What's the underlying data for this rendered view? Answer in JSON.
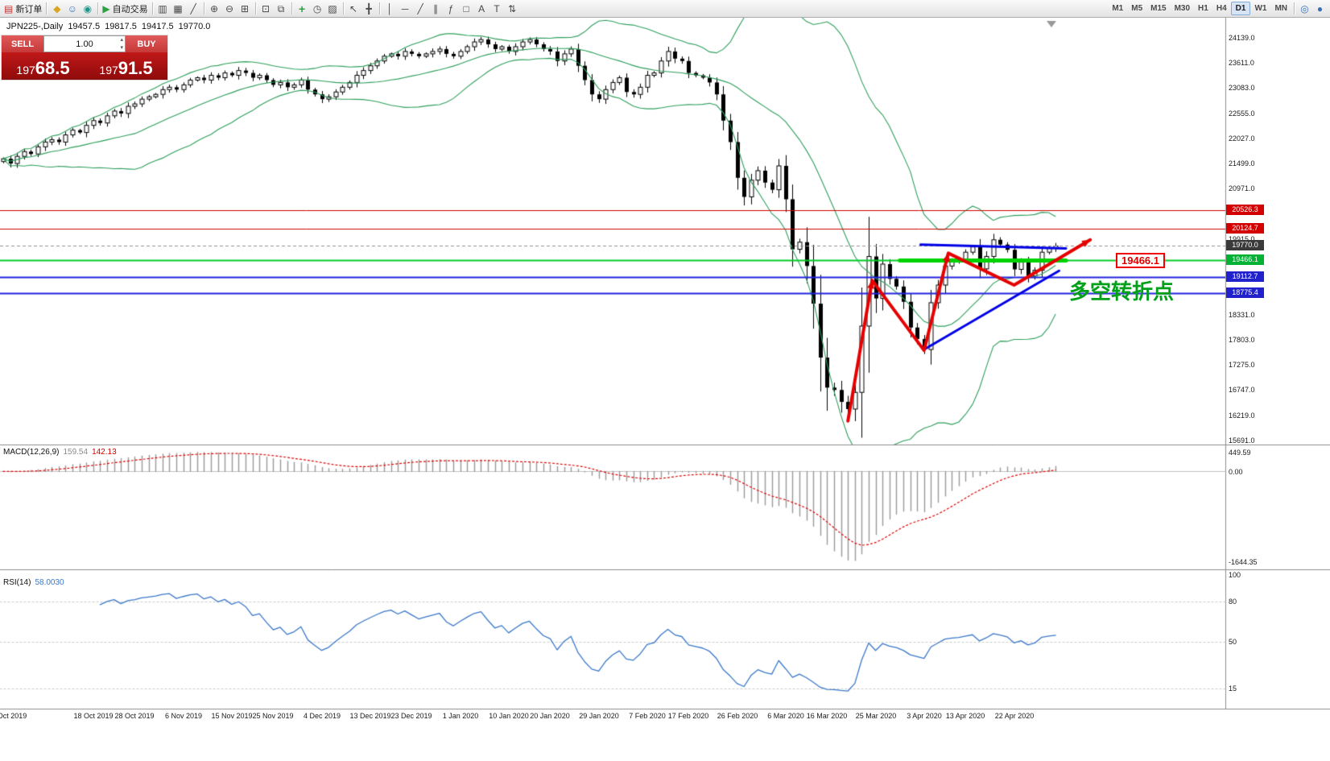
{
  "toolbar": {
    "groups": [
      {
        "name": "order",
        "items": [
          {
            "icon": "new-order-icon",
            "label": "新订单"
          }
        ]
      },
      {
        "name": "accounts",
        "items": [
          {
            "icon": "mql5-icon"
          },
          {
            "icon": "profile-icon"
          },
          {
            "icon": "community-icon"
          }
        ]
      },
      {
        "name": "autotrade",
        "items": [
          {
            "icon": "autotrade-icon",
            "label": "自动交易"
          }
        ]
      },
      {
        "name": "chart-types",
        "items": [
          {
            "icon": "bar-chart-icon"
          },
          {
            "icon": "candlestick-chart-icon"
          },
          {
            "icon": "line-chart-icon"
          }
        ]
      },
      {
        "name": "zoom",
        "items": [
          {
            "icon": "zoom-in-icon"
          },
          {
            "icon": "zoom-out-icon"
          },
          {
            "icon": "grid-icon"
          }
        ]
      },
      {
        "name": "windows",
        "items": [
          {
            "icon": "new-chart-icon"
          },
          {
            "icon": "tile-windows-icon"
          }
        ]
      },
      {
        "name": "tools",
        "items": [
          {
            "icon": "indicators-icon"
          },
          {
            "icon": "periods-icon"
          },
          {
            "icon": "templates-icon"
          }
        ]
      },
      {
        "name": "cursor",
        "items": [
          {
            "icon": "cursor-icon"
          },
          {
            "icon": "crosshair-icon"
          }
        ]
      },
      {
        "name": "draw",
        "items": [
          {
            "icon": "vertical-line-icon"
          },
          {
            "icon": "horizontal-line-icon"
          },
          {
            "icon": "trendline-icon"
          },
          {
            "icon": "channel-icon"
          },
          {
            "icon": "fibonacci-icon"
          },
          {
            "icon": "shapes-icon"
          },
          {
            "icon": "text-icon"
          },
          {
            "icon": "label-icon"
          },
          {
            "icon": "arrows-icon"
          }
        ]
      }
    ],
    "timeframes": [
      "M1",
      "M5",
      "M15",
      "M30",
      "H1",
      "H4",
      "D1",
      "W1",
      "MN"
    ],
    "active_timeframe": "D1",
    "right_items": [
      {
        "icon": "search-icon"
      },
      {
        "icon": "chat-icon"
      }
    ]
  },
  "symbol_header": {
    "title": "JPN225-,Daily",
    "open": "19457.5",
    "high": "19817.5",
    "low": "19417.5",
    "close": "19770.0"
  },
  "trading_panel": {
    "sell_label": "SELL",
    "buy_label": "BUY",
    "volume": "1.00",
    "sell_price": "19768.5",
    "buy_price": "19791.5"
  },
  "chart_data": {
    "type": "candlestick",
    "symbol": "JPN225-",
    "timeframe": "Daily",
    "price_axis_ticks": [
      "24139.0",
      "23611.0",
      "23083.0",
      "22555.0",
      "22027.0",
      "21499.0",
      "20971.0",
      "19915.0",
      "18331.0",
      "17803.0",
      "17275.0",
      "16747.0",
      "16219.0",
      "15691.0"
    ],
    "closes": [
      21600,
      21500,
      21650,
      21750,
      21700,
      21850,
      21950,
      22000,
      21950,
      22100,
      22200,
      22150,
      22300,
      22400,
      22350,
      22500,
      22600,
      22550,
      22700,
      22750,
      22850,
      22900,
      22950,
      23050,
      23100,
      23050,
      23150,
      23250,
      23300,
      23250,
      23350,
      23300,
      23400,
      23350,
      23450,
      23400,
      23300,
      23350,
      23250,
      23150,
      23200,
      23100,
      23150,
      23250,
      23050,
      22950,
      22850,
      22900,
      23000,
      23100,
      23200,
      23350,
      23450,
      23550,
      23650,
      23750,
      23800,
      23750,
      23850,
      23800,
      23750,
      23800,
      23850,
      23900,
      23800,
      23750,
      23850,
      23950,
      24050,
      24100,
      24000,
      23900,
      23950,
      23850,
      23950,
      24050,
      24100,
      24000,
      23900,
      23850,
      23650,
      23800,
      23900,
      23550,
      23250,
      22950,
      22850,
      23050,
      23200,
      23300,
      23000,
      22950,
      23100,
      23350,
      23400,
      23650,
      23850,
      23700,
      23650,
      23400,
      23350,
      23300,
      23200,
      22950,
      22400,
      21950,
      21200,
      20800,
      21150,
      21350,
      21100,
      20950,
      21450,
      20750,
      19700,
      19850,
      19350,
      18560,
      17430,
      16800,
      16750,
      16500,
      16350,
      16700,
      18090,
      19550,
      18670,
      19390,
      19080,
      18920,
      18600,
      18060,
      17820,
      17600,
      18580,
      18950,
      19350,
      19450,
      19500,
      19640,
      19750,
      19290,
      19550,
      19900,
      19800,
      19690,
      19280,
      19430,
      19140,
      19260,
      19640,
      19720,
      19770
    ],
    "bollinger": {
      "period": 20,
      "deviation": 2,
      "color": "#2e9e5b"
    },
    "macd": {
      "label": "MACD(12,26,9)",
      "value_main": "159.54",
      "value_signal": "142.13",
      "fast": 12,
      "slow": 26,
      "signal": 9,
      "axis": [
        "449.59",
        "0.00",
        "-1644.35"
      ]
    },
    "rsi": {
      "label": "RSI(14)",
      "value": "58.0030",
      "period": 14,
      "levels": [
        80,
        50,
        15
      ],
      "axis": [
        "100",
        "80",
        "50",
        "15"
      ]
    },
    "levels": [
      {
        "value": 20526.3,
        "label": "20526.3",
        "color": "#cc0000",
        "width": 1,
        "style": "solid",
        "badge": "red"
      },
      {
        "value": 20124.7,
        "label": "20124.7",
        "color": "#cc0000",
        "width": 1,
        "style": "solid",
        "badge": "red"
      },
      {
        "value": 19770.0,
        "label": "19770.0",
        "color": "#909090",
        "width": 1,
        "style": "dash",
        "badge": "dark"
      },
      {
        "value": 19466.1,
        "label": "19466.1",
        "color": "#00cc22",
        "width": 2,
        "style": "solid",
        "badge": "green"
      },
      {
        "value": 19112.7,
        "label": "19112.7",
        "color": "#2222dd",
        "width": 2,
        "style": "solid",
        "badge": "blue"
      },
      {
        "value": 18775.4,
        "label": "18775.4",
        "color": "#2222dd",
        "width": 2,
        "style": "solid",
        "badge": "blue"
      }
    ],
    "drawings": {
      "red_zigzag": {
        "color": "#e60000",
        "width": 4,
        "points": [
          [
            122,
            16100
          ],
          [
            125.5,
            19050
          ],
          [
            133,
            17580
          ],
          [
            136.5,
            19620
          ],
          [
            146,
            18950
          ],
          [
            157,
            19900
          ]
        ]
      },
      "blue_support": {
        "color": "#0000e6",
        "width": 3,
        "points": [
          [
            133,
            17600
          ],
          [
            152.5,
            19250
          ]
        ]
      },
      "blue_resistance": {
        "color": "#0000e6",
        "width": 3,
        "points": [
          [
            132.5,
            19800
          ],
          [
            153.5,
            19720
          ]
        ]
      },
      "green_level_segment": {
        "color": "#00d300",
        "width": 5,
        "points": [
          [
            129.5,
            19466.1
          ],
          [
            153.5,
            19466.1
          ]
        ]
      }
    },
    "annotations": {
      "price_flag": "19466.1",
      "turning_point_text": "多空转折点"
    },
    "x_labels": [
      {
        "label": "Oct 2019",
        "bar": 1
      },
      {
        "label": "18 Oct 2019",
        "bar": 13
      },
      {
        "label": "28 Oct 2019",
        "bar": 19
      },
      {
        "label": "6 Nov 2019",
        "bar": 26
      },
      {
        "label": "15 Nov 2019",
        "bar": 33
      },
      {
        "label": "25 Nov 2019",
        "bar": 39
      },
      {
        "label": "4 Dec 2019",
        "bar": 46
      },
      {
        "label": "13 Dec 2019",
        "bar": 53
      },
      {
        "label": "23 Dec 2019",
        "bar": 59
      },
      {
        "label": "1 Jan 2020",
        "bar": 66
      },
      {
        "label": "10 Jan 2020",
        "bar": 73
      },
      {
        "label": "20 Jan 2020",
        "bar": 79
      },
      {
        "label": "29 Jan 2020",
        "bar": 86
      },
      {
        "label": "7 Feb 2020",
        "bar": 93
      },
      {
        "label": "17 Feb 2020",
        "bar": 99
      },
      {
        "label": "26 Feb 2020",
        "bar": 106
      },
      {
        "label": "6 Mar 2020",
        "bar": 113
      },
      {
        "label": "16 Mar 2020",
        "bar": 119
      },
      {
        "label": "25 Mar 2020",
        "bar": 126
      },
      {
        "label": "3 Apr 2020",
        "bar": 133
      },
      {
        "label": "13 Apr 2020",
        "bar": 139
      },
      {
        "label": "22 Apr 2020",
        "bar": 146
      }
    ]
  }
}
